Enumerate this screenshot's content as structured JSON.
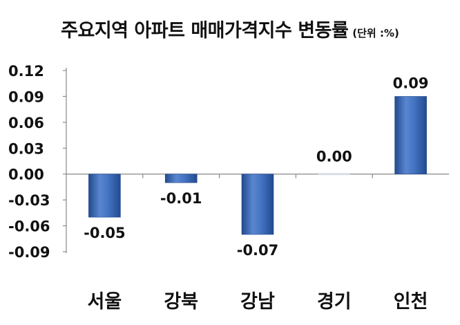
{
  "title": "주요지역 아파트 매매가격지수 변동률",
  "unit_label": "(단위 :%)",
  "colors": {
    "bar": "#3a68b8",
    "bar_light": "#6d98dc",
    "bar_dark": "#224a8e",
    "axis": "#888888",
    "text": "#111111"
  },
  "chart_data": {
    "type": "bar",
    "title": "주요지역 아파트 매매가격지수 변동률",
    "subtitle": "(단위 :%)",
    "categories": [
      "서울",
      "강북",
      "강남",
      "경기",
      "인천"
    ],
    "values": [
      -0.05,
      -0.01,
      -0.07,
      0.0,
      0.09
    ],
    "data_labels": [
      "-0.05",
      "-0.01",
      "-0.07",
      "0.00",
      "0.09"
    ],
    "ylim": [
      -0.09,
      0.12
    ],
    "y_ticks": [
      0.12,
      0.09,
      0.06,
      0.03,
      0.0,
      -0.03,
      -0.06,
      -0.09
    ],
    "y_tick_labels": [
      "0.12",
      "0.09",
      "0.06",
      "0.03",
      "0.00",
      "-0.03",
      "-0.06",
      "-0.09"
    ],
    "xlabel": "",
    "ylabel": "",
    "grid": false,
    "legend": "none"
  }
}
